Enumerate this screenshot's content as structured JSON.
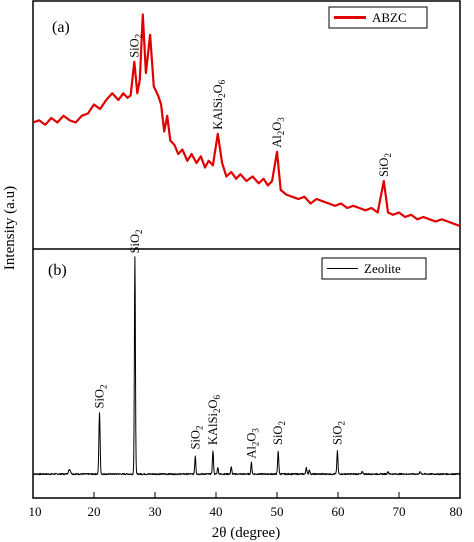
{
  "chart_data": {
    "type": "line",
    "xlabel": "2θ (degree)",
    "ylabel": "Intensity (a.u)",
    "xlim": [
      10,
      80
    ],
    "x_ticks": [
      "10",
      "20",
      "30",
      "40",
      "50",
      "60",
      "70",
      "80"
    ],
    "panels": [
      {
        "panel_label": "(a)",
        "legend": {
          "label": "ABZC",
          "color": "#e00000",
          "placement": "top-right"
        },
        "series": {
          "name": "ABZC",
          "color": "#e00000",
          "points": [
            [
              10.0,
              0.5
            ],
            [
              11.0,
              0.51
            ],
            [
              12.0,
              0.49
            ],
            [
              13.0,
              0.52
            ],
            [
              14.0,
              0.5
            ],
            [
              15.0,
              0.53
            ],
            [
              16.0,
              0.51
            ],
            [
              17.0,
              0.5
            ],
            [
              18.0,
              0.53
            ],
            [
              19.0,
              0.54
            ],
            [
              20.0,
              0.58
            ],
            [
              21.0,
              0.56
            ],
            [
              22.0,
              0.6
            ],
            [
              23.0,
              0.63
            ],
            [
              24.0,
              0.6
            ],
            [
              24.8,
              0.63
            ],
            [
              25.5,
              0.61
            ],
            [
              26.0,
              0.62
            ],
            [
              26.6,
              0.77
            ],
            [
              27.1,
              0.63
            ],
            [
              27.5,
              0.69
            ],
            [
              28.0,
              0.98
            ],
            [
              28.5,
              0.72
            ],
            [
              29.2,
              0.89
            ],
            [
              29.8,
              0.66
            ],
            [
              30.5,
              0.62
            ],
            [
              31.0,
              0.58
            ],
            [
              31.5,
              0.46
            ],
            [
              32.0,
              0.53
            ],
            [
              32.5,
              0.42
            ],
            [
              33.2,
              0.4
            ],
            [
              33.8,
              0.36
            ],
            [
              34.5,
              0.38
            ],
            [
              35.3,
              0.33
            ],
            [
              36.0,
              0.36
            ],
            [
              36.8,
              0.32
            ],
            [
              37.5,
              0.35
            ],
            [
              38.2,
              0.3
            ],
            [
              38.8,
              0.33
            ],
            [
              39.5,
              0.31
            ],
            [
              40.3,
              0.45
            ],
            [
              41.0,
              0.32
            ],
            [
              41.7,
              0.26
            ],
            [
              42.5,
              0.28
            ],
            [
              43.3,
              0.25
            ],
            [
              44.0,
              0.27
            ],
            [
              45.0,
              0.24
            ],
            [
              46.0,
              0.26
            ],
            [
              47.0,
              0.23
            ],
            [
              47.8,
              0.25
            ],
            [
              48.5,
              0.22
            ],
            [
              49.2,
              0.24
            ],
            [
              50.0,
              0.37
            ],
            [
              50.6,
              0.2
            ],
            [
              51.5,
              0.18
            ],
            [
              52.5,
              0.17
            ],
            [
              53.5,
              0.16
            ],
            [
              54.5,
              0.17
            ],
            [
              55.5,
              0.14
            ],
            [
              56.5,
              0.16
            ],
            [
              57.5,
              0.15
            ],
            [
              58.5,
              0.14
            ],
            [
              59.5,
              0.13
            ],
            [
              60.5,
              0.14
            ],
            [
              61.5,
              0.12
            ],
            [
              62.5,
              0.13
            ],
            [
              63.5,
              0.12
            ],
            [
              64.5,
              0.11
            ],
            [
              65.5,
              0.12
            ],
            [
              66.5,
              0.1
            ],
            [
              67.5,
              0.24
            ],
            [
              68.2,
              0.1
            ],
            [
              69.0,
              0.09
            ],
            [
              70.0,
              0.1
            ],
            [
              71.0,
              0.08
            ],
            [
              72.0,
              0.09
            ],
            [
              73.0,
              0.07
            ],
            [
              74.0,
              0.08
            ],
            [
              75.0,
              0.07
            ],
            [
              76.0,
              0.06
            ],
            [
              77.0,
              0.07
            ],
            [
              78.0,
              0.06
            ],
            [
              79.0,
              0.05
            ],
            [
              80.0,
              0.04
            ]
          ]
        },
        "annotations": [
          {
            "x": 26.6,
            "y": 0.77,
            "base": "SiO",
            "sub": "2",
            "rotation": -90
          },
          {
            "x": 40.3,
            "y": 0.45,
            "base": "KAlSi",
            "sub": "2",
            "base2": "O",
            "sub2": "6",
            "rotation": -90
          },
          {
            "x": 50.0,
            "y": 0.37,
            "base": "Al",
            "sub": "2",
            "base2": "O",
            "sub2": "3",
            "rotation": -90
          },
          {
            "x": 67.5,
            "y": 0.24,
            "base": "SiO",
            "sub": "2",
            "rotation": -90
          }
        ]
      },
      {
        "panel_label": "(b)",
        "legend": {
          "label": "Zeolite",
          "color": "#000000",
          "placement": "top-right"
        },
        "series": {
          "name": "Zeolite",
          "color": "#000000",
          "baseline": 0.07,
          "peaks": [
            [
              16.0,
              0.02,
              0.25
            ],
            [
              20.9,
              0.27,
              0.14
            ],
            [
              26.7,
              0.95,
              0.12
            ],
            [
              36.6,
              0.08,
              0.12
            ],
            [
              39.5,
              0.1,
              0.12
            ],
            [
              40.3,
              0.03,
              0.12
            ],
            [
              42.5,
              0.03,
              0.12
            ],
            [
              45.8,
              0.05,
              0.12
            ],
            [
              50.2,
              0.1,
              0.13
            ],
            [
              54.8,
              0.03,
              0.12
            ],
            [
              55.3,
              0.02,
              0.12
            ],
            [
              59.9,
              0.1,
              0.13
            ],
            [
              64.0,
              0.01,
              0.15
            ],
            [
              68.2,
              0.01,
              0.15
            ],
            [
              73.5,
              0.01,
              0.15
            ]
          ]
        },
        "annotations": [
          {
            "x": 20.9,
            "y": 0.34,
            "base": "SiO",
            "sub": "2",
            "rotation": -90
          },
          {
            "x": 26.7,
            "y": 1.02,
            "base": "SiO",
            "sub": "2",
            "rotation": -90
          },
          {
            "x": 36.6,
            "y": 0.16,
            "base": "SiO",
            "sub": "2",
            "rotation": -90
          },
          {
            "x": 39.5,
            "y": 0.18,
            "base": "KAlSi",
            "sub": "2",
            "base2": "O",
            "sub2": "6",
            "rotation": -90
          },
          {
            "x": 45.8,
            "y": 0.12,
            "base": "Al",
            "sub": "2",
            "base2": "O",
            "sub2": "3",
            "rotation": -90
          },
          {
            "x": 50.2,
            "y": 0.18,
            "base": "SiO",
            "sub": "2",
            "rotation": -90
          },
          {
            "x": 59.9,
            "y": 0.18,
            "base": "SiO",
            "sub": "2",
            "rotation": -90
          }
        ]
      }
    ]
  }
}
